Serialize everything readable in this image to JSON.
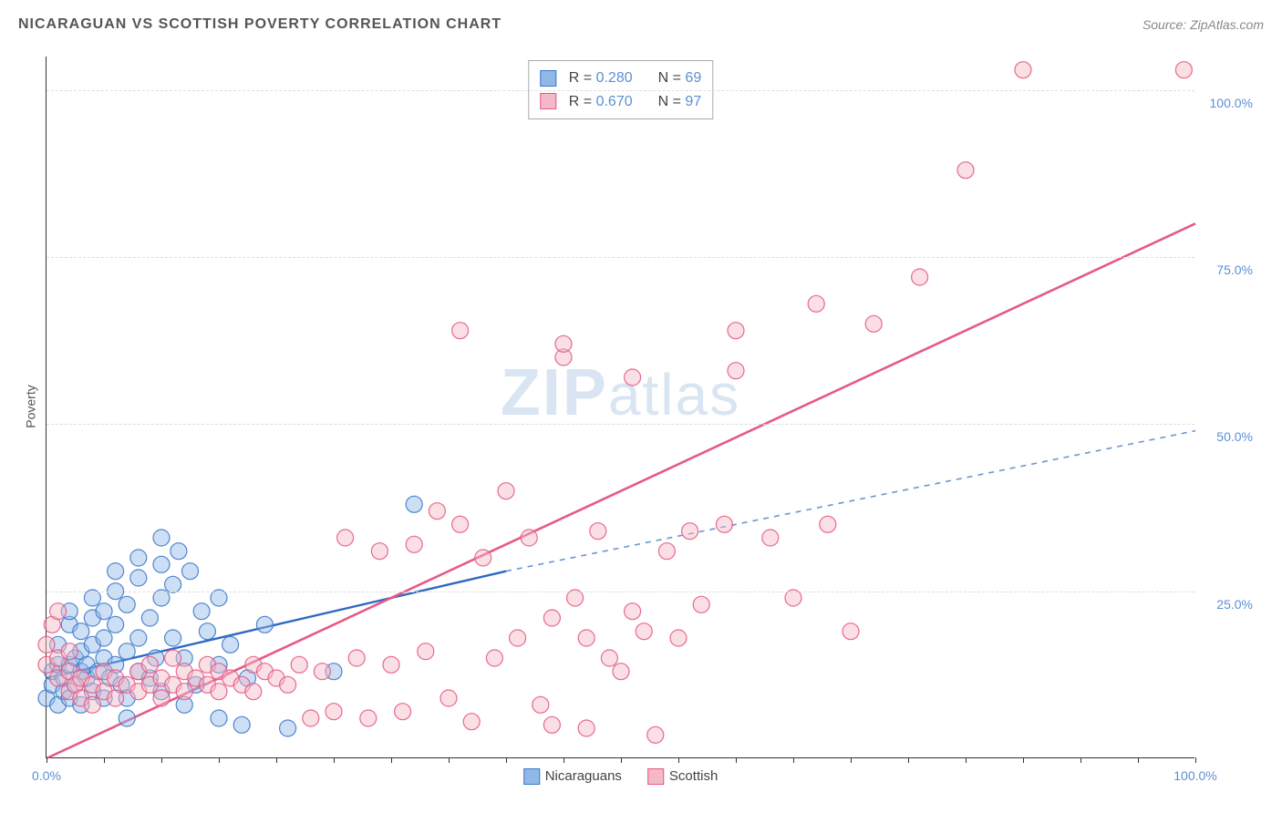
{
  "title": "NICARAGUAN VS SCOTTISH POVERTY CORRELATION CHART",
  "source_label": "Source:",
  "source_name": "ZipAtlas.com",
  "y_axis_label": "Poverty",
  "watermark_a": "ZIP",
  "watermark_b": "atlas",
  "chart": {
    "type": "scatter",
    "xlim": [
      0,
      100
    ],
    "ylim": [
      0,
      105
    ],
    "x_min_label": "0.0%",
    "x_max_label": "100.0%",
    "y_ticks": [
      25,
      50,
      75,
      100
    ],
    "y_tick_labels": [
      "25.0%",
      "50.0%",
      "75.0%",
      "100.0%"
    ],
    "x_minor_ticks": [
      0,
      5,
      10,
      15,
      20,
      25,
      30,
      35,
      40,
      45,
      50,
      55,
      60,
      65,
      70,
      75,
      80,
      85,
      90,
      95,
      100
    ],
    "grid_color": "#dddddd",
    "axis_color": "#333333",
    "tick_label_color": "#5b8fd6",
    "marker_radius": 9,
    "marker_opacity": 0.45,
    "marker_stroke_opacity": 0.9,
    "marker_stroke_width": 1.2,
    "series": [
      {
        "name": "Nicaraguans",
        "color_fill": "#8fb8e8",
        "color_stroke": "#3f79c9",
        "R": "0.280",
        "N": "69",
        "regression": {
          "x1": 0,
          "y1": 12,
          "x2": 40,
          "y2": 28,
          "color": "#2f68c2",
          "width": 2.4
        },
        "regression_ext": {
          "x1": 40,
          "y1": 28,
          "x2": 100,
          "y2": 49,
          "color": "#6a95d3",
          "width": 1.6,
          "dash": "6,6"
        },
        "points": [
          [
            0,
            9
          ],
          [
            0.5,
            11
          ],
          [
            0.5,
            13
          ],
          [
            1,
            8
          ],
          [
            1,
            14
          ],
          [
            1,
            17
          ],
          [
            1.5,
            10
          ],
          [
            1.5,
            12
          ],
          [
            2,
            9
          ],
          [
            2,
            14
          ],
          [
            2,
            20
          ],
          [
            2,
            22
          ],
          [
            2.5,
            11
          ],
          [
            2.5,
            15
          ],
          [
            3,
            8
          ],
          [
            3,
            13
          ],
          [
            3,
            16
          ],
          [
            3,
            19
          ],
          [
            3.5,
            12
          ],
          [
            3.5,
            14
          ],
          [
            4,
            10
          ],
          [
            4,
            17
          ],
          [
            4,
            21
          ],
          [
            4,
            24
          ],
          [
            4.5,
            13
          ],
          [
            5,
            9
          ],
          [
            5,
            15
          ],
          [
            5,
            18
          ],
          [
            5,
            22
          ],
          [
            5.5,
            12
          ],
          [
            6,
            14
          ],
          [
            6,
            20
          ],
          [
            6,
            25
          ],
          [
            6,
            28
          ],
          [
            6.5,
            11
          ],
          [
            7,
            9
          ],
          [
            7,
            6
          ],
          [
            7,
            16
          ],
          [
            7,
            23
          ],
          [
            8,
            13
          ],
          [
            8,
            18
          ],
          [
            8,
            27
          ],
          [
            8,
            30
          ],
          [
            9,
            12
          ],
          [
            9,
            21
          ],
          [
            9.5,
            15
          ],
          [
            10,
            10
          ],
          [
            10,
            24
          ],
          [
            10,
            29
          ],
          [
            10,
            33
          ],
          [
            11,
            18
          ],
          [
            11,
            26
          ],
          [
            11.5,
            31
          ],
          [
            12,
            8
          ],
          [
            12,
            15
          ],
          [
            12.5,
            28
          ],
          [
            13,
            11
          ],
          [
            13.5,
            22
          ],
          [
            14,
            19
          ],
          [
            15,
            6
          ],
          [
            15,
            14
          ],
          [
            15,
            24
          ],
          [
            16,
            17
          ],
          [
            17,
            5
          ],
          [
            17.5,
            12
          ],
          [
            19,
            20
          ],
          [
            21,
            4.5
          ],
          [
            25,
            13
          ],
          [
            32,
            38
          ]
        ]
      },
      {
        "name": "Scottish",
        "color_fill": "#f4b8c6",
        "color_stroke": "#e65a84",
        "R": "0.670",
        "N": "97",
        "regression": {
          "x1": 0,
          "y1": 0,
          "x2": 100,
          "y2": 80,
          "color": "#e65a84",
          "width": 2.6
        },
        "points": [
          [
            0,
            14
          ],
          [
            0,
            17
          ],
          [
            0.5,
            20
          ],
          [
            1,
            12
          ],
          [
            1,
            15
          ],
          [
            1,
            22
          ],
          [
            2,
            10
          ],
          [
            2,
            13
          ],
          [
            2,
            16
          ],
          [
            2.5,
            11
          ],
          [
            3,
            9
          ],
          [
            3,
            12
          ],
          [
            4,
            8
          ],
          [
            4,
            11
          ],
          [
            5,
            10
          ],
          [
            5,
            13
          ],
          [
            6,
            9
          ],
          [
            6,
            12
          ],
          [
            7,
            11
          ],
          [
            8,
            10
          ],
          [
            8,
            13
          ],
          [
            9,
            11
          ],
          [
            9,
            14
          ],
          [
            10,
            9
          ],
          [
            10,
            12
          ],
          [
            11,
            11
          ],
          [
            11,
            15
          ],
          [
            12,
            10
          ],
          [
            12,
            13
          ],
          [
            13,
            12
          ],
          [
            14,
            11
          ],
          [
            14,
            14
          ],
          [
            15,
            10
          ],
          [
            15,
            13
          ],
          [
            16,
            12
          ],
          [
            17,
            11
          ],
          [
            18,
            10
          ],
          [
            18,
            14
          ],
          [
            19,
            13
          ],
          [
            20,
            12
          ],
          [
            21,
            11
          ],
          [
            22,
            14
          ],
          [
            23,
            6
          ],
          [
            24,
            13
          ],
          [
            25,
            7
          ],
          [
            26,
            33
          ],
          [
            27,
            15
          ],
          [
            28,
            6
          ],
          [
            29,
            31
          ],
          [
            30,
            14
          ],
          [
            31,
            7
          ],
          [
            32,
            32
          ],
          [
            33,
            16
          ],
          [
            34,
            37
          ],
          [
            35,
            9
          ],
          [
            36,
            64
          ],
          [
            36,
            35
          ],
          [
            37,
            5.5
          ],
          [
            38,
            30
          ],
          [
            39,
            15
          ],
          [
            40,
            40
          ],
          [
            41,
            18
          ],
          [
            42,
            33
          ],
          [
            43,
            8
          ],
          [
            44,
            21
          ],
          [
            44,
            5
          ],
          [
            45,
            60
          ],
          [
            45,
            62
          ],
          [
            46,
            24
          ],
          [
            47,
            18
          ],
          [
            47,
            4.5
          ],
          [
            48,
            34
          ],
          [
            49,
            15
          ],
          [
            50,
            13
          ],
          [
            51,
            22
          ],
          [
            51,
            57
          ],
          [
            52,
            19
          ],
          [
            53,
            3.5
          ],
          [
            54,
            31
          ],
          [
            55,
            18
          ],
          [
            56,
            34
          ],
          [
            57,
            23
          ],
          [
            59,
            35
          ],
          [
            60,
            58
          ],
          [
            60,
            64
          ],
          [
            63,
            33
          ],
          [
            65,
            24
          ],
          [
            67,
            68
          ],
          [
            68,
            35
          ],
          [
            70,
            19
          ],
          [
            72,
            65
          ],
          [
            76,
            72
          ],
          [
            80,
            88
          ],
          [
            85,
            103
          ],
          [
            99,
            103
          ]
        ]
      }
    ],
    "x_legend_items": [
      {
        "label": "Nicaraguans",
        "fill": "#8fb8e8",
        "stroke": "#3f79c9"
      },
      {
        "label": "Scottish",
        "fill": "#f4b8c6",
        "stroke": "#e65a84"
      }
    ]
  }
}
